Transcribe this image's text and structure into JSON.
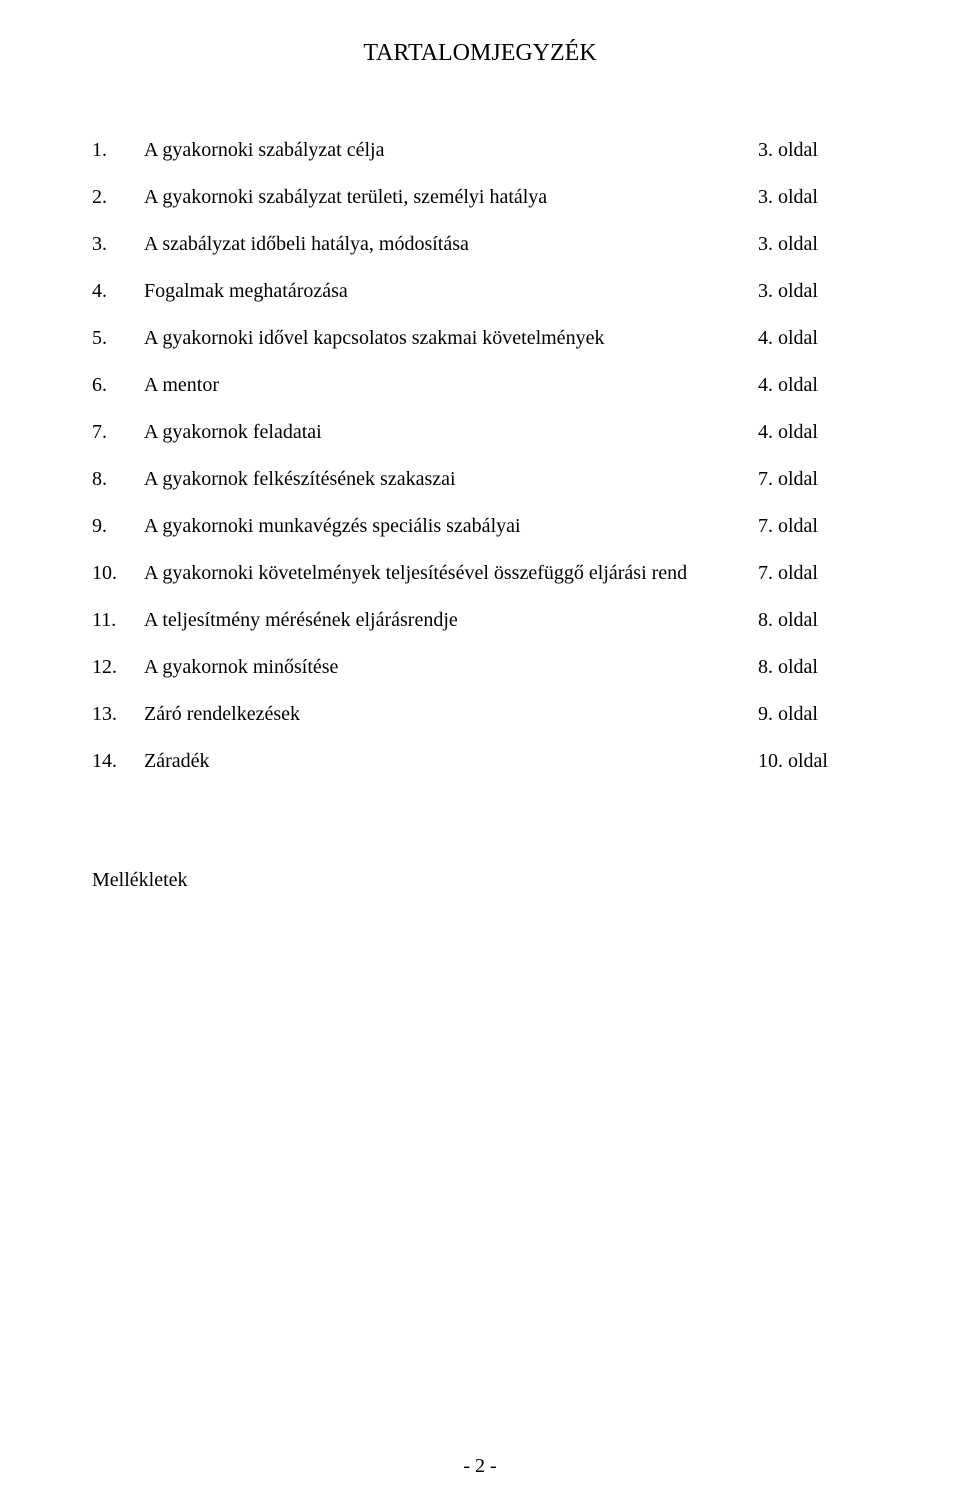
{
  "title": "TARTALOMJEGYZÉK",
  "toc": [
    {
      "num": "1.",
      "title": "A gyakornoki szabályzat célja",
      "page": "3. oldal"
    },
    {
      "num": "2.",
      "title": "A gyakornoki szabályzat területi, személyi hatálya",
      "page": "3. oldal"
    },
    {
      "num": "3.",
      "title": "A szabályzat időbeli hatálya, módosítása",
      "page": "3. oldal"
    },
    {
      "num": "4.",
      "title": "Fogalmak meghatározása",
      "page": "3. oldal"
    },
    {
      "num": "5.",
      "title": "A gyakornoki idővel kapcsolatos szakmai követelmények",
      "page": "4. oldal"
    },
    {
      "num": "6.",
      "title": "A mentor",
      "page": "4. oldal"
    },
    {
      "num": "7.",
      "title": "A gyakornok feladatai",
      "page": "4. oldal"
    },
    {
      "num": "8.",
      "title": "A gyakornok felkészítésének szakaszai",
      "page": "7. oldal"
    },
    {
      "num": "9.",
      "title": "A gyakornoki munkavégzés speciális szabályai",
      "page": "7. oldal"
    },
    {
      "num": "10.",
      "title": "A gyakornoki követelmények teljesítésével összefüggő eljárási rend",
      "page": "7. oldal"
    },
    {
      "num": "11.",
      "title": "A teljesítmény mérésének eljárásrendje",
      "page": "8. oldal"
    },
    {
      "num": "12.",
      "title": "A gyakornok minősítése",
      "page": "8. oldal"
    },
    {
      "num": "13.",
      "title": "Záró rendelkezések",
      "page": "9. oldal"
    },
    {
      "num": "14.",
      "title": "Záradék",
      "page": "10. oldal"
    }
  ],
  "appendix_label": "Mellékletek",
  "page_number": "- 2 -"
}
